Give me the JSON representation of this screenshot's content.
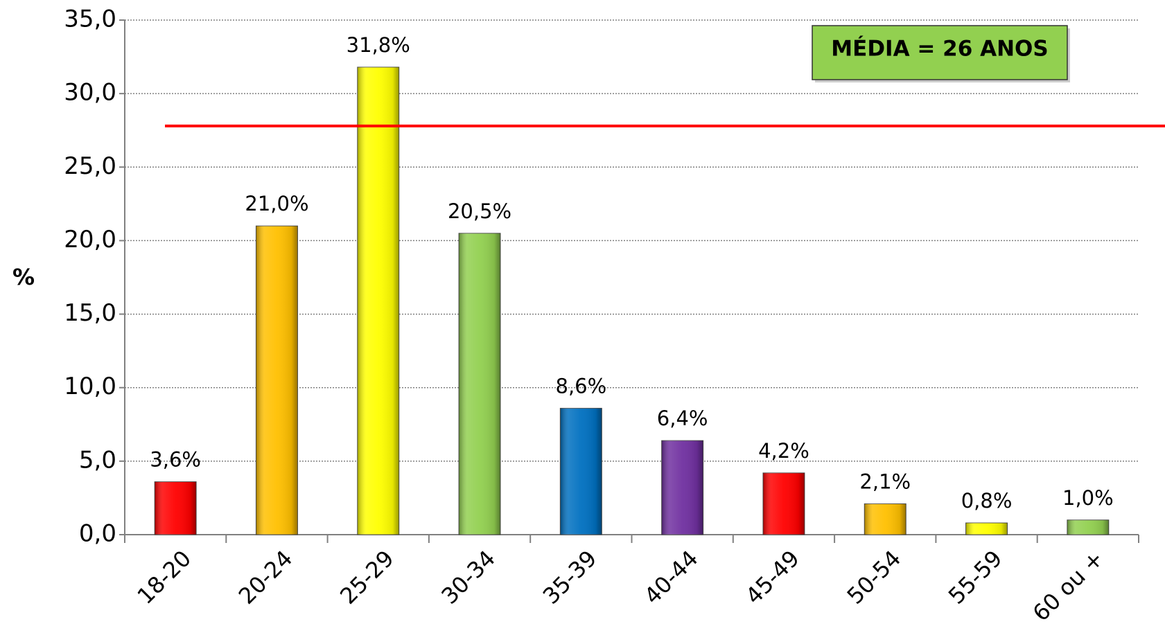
{
  "chart_data": {
    "type": "bar",
    "y_label": "%",
    "annotation": "MÉDIA = 26 ANOS",
    "categories": [
      "18-20",
      "20-24",
      "25-29",
      "30-34",
      "35-39",
      "40-44",
      "45-49",
      "50-54",
      "55-59",
      "60 ou +"
    ],
    "values": [
      3.6,
      21.0,
      31.8,
      20.5,
      8.6,
      6.4,
      4.2,
      2.1,
      0.8,
      1.0
    ],
    "value_labels": [
      "3,6%",
      "21,0%",
      "31,8%",
      "20,5%",
      "8,6%",
      "6,4%",
      "4,2%",
      "2,1%",
      "0,8%",
      "1,0%"
    ],
    "colors": [
      "#ff0000",
      "#ffc000",
      "#ffff00",
      "#92d050",
      "#0070c0",
      "#7030a0",
      "#ff0000",
      "#ffc000",
      "#ffff00",
      "#92d050"
    ],
    "reference_line": 27.8,
    "reference_color": "#ff0000",
    "ylim": [
      0,
      35
    ],
    "yticks": [
      {
        "value": 0,
        "label": "0,0"
      },
      {
        "value": 5,
        "label": "5,0"
      },
      {
        "value": 10,
        "label": "10,0"
      },
      {
        "value": 15,
        "label": "15,0"
      },
      {
        "value": 20,
        "label": "20,0"
      },
      {
        "value": 25,
        "label": "25,0"
      },
      {
        "value": 30,
        "label": "30,0"
      },
      {
        "value": 35,
        "label": "35,0"
      }
    ],
    "grid": true
  }
}
